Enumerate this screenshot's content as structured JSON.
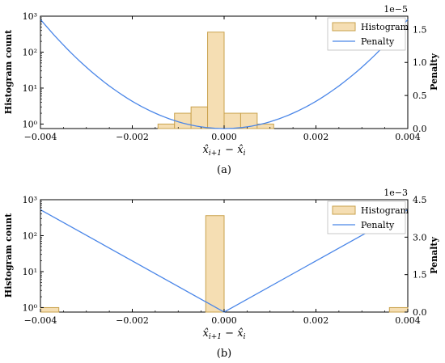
{
  "chart_data": [
    {
      "panel_label": "(a)",
      "type": "bar",
      "xlabel": "x̂i+1 − x̂i",
      "ylabel_left": "Histogram count",
      "ylabel_right": "Penalty",
      "right_axis_multiplier": "1e−5",
      "xlim": [
        -0.004,
        0.004
      ],
      "xticks": [
        "−0.004",
        "−0.002",
        "0.000",
        "0.002",
        "0.004"
      ],
      "ylim_left": [
        0.75,
        1000
      ],
      "yscale_left": "log",
      "yticks_left": [
        "10⁰",
        "10¹",
        "10²",
        "10³"
      ],
      "ylim_right": [
        0,
        1.7
      ],
      "yticks_right": [
        "0.0",
        "0.5",
        "1.0",
        "1.5"
      ],
      "legend": [
        "Histogram",
        "Penalty"
      ],
      "legend_position": "top-right",
      "histogram": {
        "bin_edges": [
          -0.00144,
          -0.00108,
          -0.00072,
          -0.00036,
          0.0,
          0.00036,
          0.00072,
          0.00108,
          0.00144
        ],
        "counts": [
          1,
          2,
          3,
          360,
          2,
          2,
          1,
          0
        ]
      },
      "penalty": {
        "shape": "quadratic",
        "x": [
          -0.004,
          -0.003,
          -0.002,
          -0.001,
          0.0,
          0.001,
          0.002,
          0.003,
          0.004
        ],
        "y": [
          1.65,
          0.93,
          0.41,
          0.1,
          0.0,
          0.1,
          0.41,
          0.93,
          1.65
        ]
      }
    },
    {
      "panel_label": "(b)",
      "type": "bar",
      "xlabel": "x̂i+1 − x̂i",
      "ylabel_left": "Histogram count",
      "ylabel_right": "Penalty",
      "right_axis_multiplier": "1e−3",
      "xlim": [
        -0.004,
        0.004
      ],
      "xticks": [
        "−0.004",
        "−0.002",
        "0.000",
        "0.002",
        "0.004"
      ],
      "ylim_left": [
        0.75,
        1000
      ],
      "yscale_left": "log",
      "yticks_left": [
        "10⁰",
        "10¹",
        "10²",
        "10³"
      ],
      "ylim_right": [
        0,
        4.5
      ],
      "yticks_right": [
        "0.0",
        "1.5",
        "3.0",
        "4.5"
      ],
      "legend": [
        "Histogram",
        "Penalty"
      ],
      "legend_position": "top-right",
      "histogram": {
        "bin_edges": [
          -0.004,
          -0.0036,
          -0.0004,
          0.0,
          0.0036,
          0.004
        ],
        "counts": [
          1,
          0,
          360,
          0,
          1
        ]
      },
      "penalty": {
        "shape": "absolute",
        "x": [
          -0.004,
          0.0,
          0.004
        ],
        "y": [
          4.1,
          0.0,
          4.1
        ]
      }
    }
  ],
  "colors": {
    "bar_fill": "#f5deb3",
    "bar_edge": "#c9a24d",
    "line": "#4a86e8",
    "axes": "#000000"
  }
}
